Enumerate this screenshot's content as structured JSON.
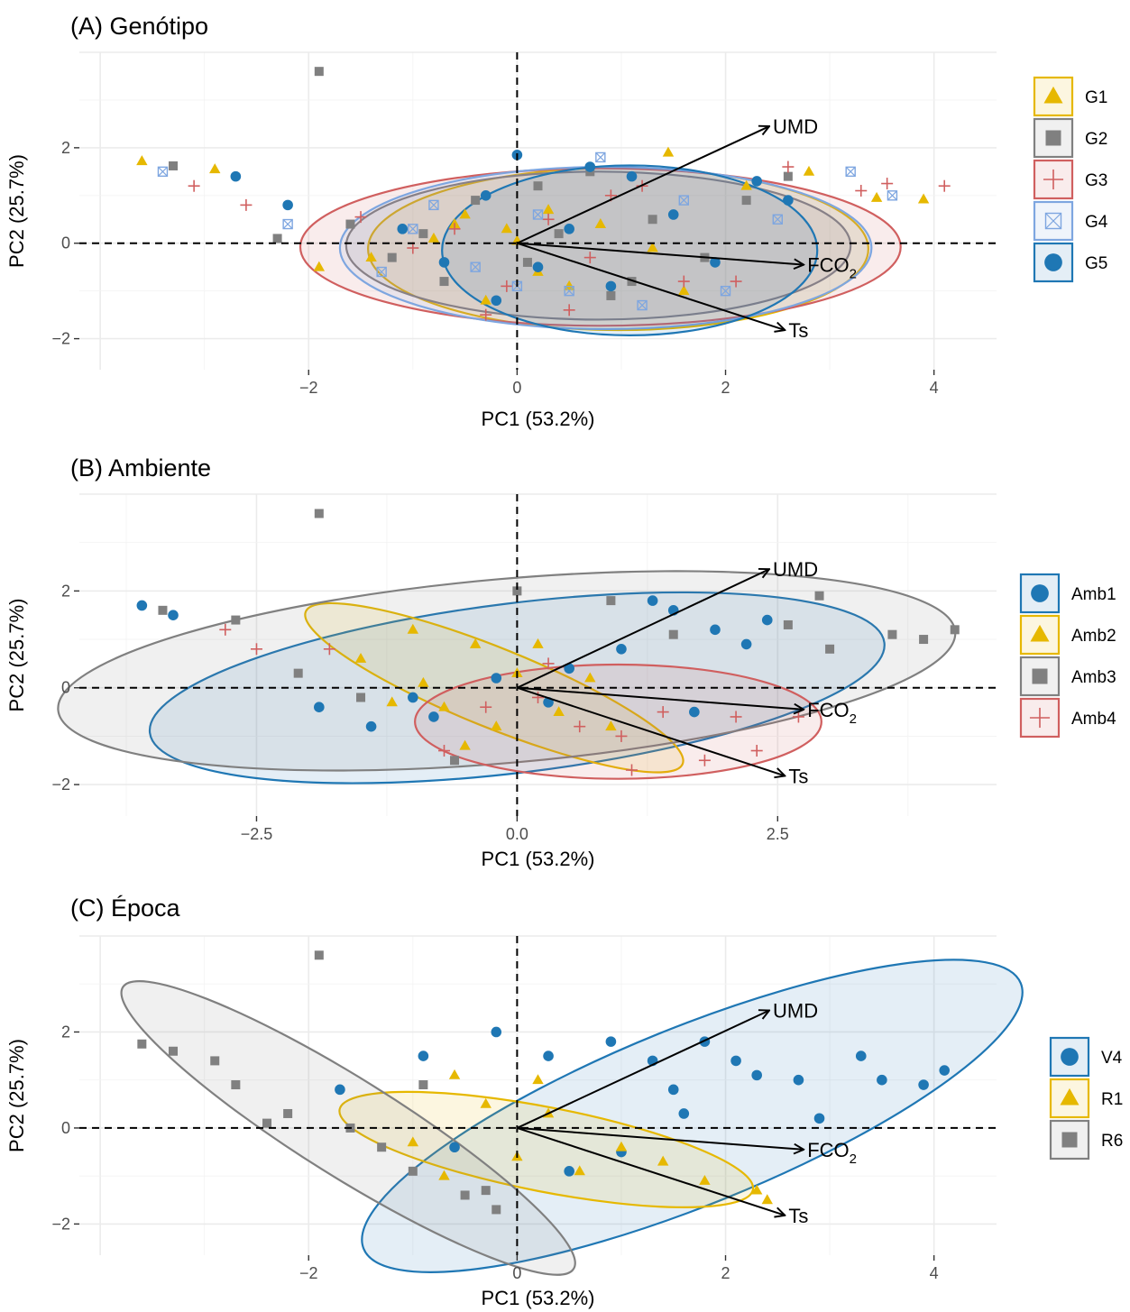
{
  "chart_data": [
    {
      "type": "scatter",
      "title": "(A) Genótipo",
      "xlabel": "PC1 (53.2%)",
      "ylabel": "PC2 (25.7%)",
      "xlim": [
        -4.2,
        4.6
      ],
      "ylim": [
        -2.65,
        4.0
      ],
      "xticks": [
        -2,
        0,
        2,
        4
      ],
      "xtick_labels": [
        "−2",
        "0",
        "2",
        "4"
      ],
      "yticks": [
        -2,
        0,
        2
      ],
      "ytick_labels": [
        "−2",
        "0",
        "2"
      ],
      "grid": true,
      "legend": "right",
      "vectors": [
        {
          "label": "UMD",
          "x": 2.42,
          "y": 2.45
        },
        {
          "label": "FCO",
          "sub": "2",
          "x": 2.75,
          "y": -0.45
        },
        {
          "label": "Ts",
          "x": 2.57,
          "y": -1.82
        }
      ],
      "series": [
        {
          "name": "G1",
          "marker": "triangle",
          "color": "#e6b800",
          "ellipse": {
            "cx": 0.97,
            "cy": -0.12,
            "rx": 2.4,
            "ry": 1.7,
            "angle": 0
          },
          "points": [
            [
              -3.6,
              1.72
            ],
            [
              -2.9,
              1.55
            ],
            [
              -1.4,
              -0.3
            ],
            [
              -0.8,
              0.1
            ],
            [
              -0.5,
              0.6
            ],
            [
              -0.3,
              -1.2
            ],
            [
              -0.1,
              0.3
            ],
            [
              0.2,
              -0.6
            ],
            [
              0.5,
              -0.9
            ],
            [
              0.8,
              0.4
            ],
            [
              1.3,
              -0.1
            ],
            [
              1.45,
              1.9
            ],
            [
              1.6,
              -1.0
            ],
            [
              2.2,
              1.2
            ],
            [
              2.8,
              1.5
            ],
            [
              3.45,
              0.95
            ],
            [
              3.9,
              0.92
            ],
            [
              -1.9,
              -0.5
            ],
            [
              0.0,
              0.05
            ],
            [
              -0.6,
              0.4
            ],
            [
              0.3,
              0.7
            ]
          ]
        },
        {
          "name": "G2",
          "marker": "square",
          "color": "#808080",
          "ellipse": {
            "cx": 0.78,
            "cy": -0.05,
            "rx": 2.42,
            "ry": 1.55,
            "angle": 0
          },
          "points": [
            [
              -1.9,
              3.6
            ],
            [
              -3.3,
              1.62
            ],
            [
              -1.6,
              0.4
            ],
            [
              -1.2,
              -0.3
            ],
            [
              -0.7,
              -0.8
            ],
            [
              -0.4,
              0.9
            ],
            [
              0.1,
              -0.4
            ],
            [
              0.4,
              0.2
            ],
            [
              0.9,
              -1.1
            ],
            [
              1.3,
              0.5
            ],
            [
              1.8,
              -0.3
            ],
            [
              2.2,
              0.9
            ],
            [
              2.6,
              1.4
            ],
            [
              -2.3,
              0.1
            ],
            [
              -0.9,
              0.2
            ],
            [
              0.7,
              1.5
            ],
            [
              1.1,
              -0.8
            ],
            [
              0.2,
              1.2
            ]
          ]
        },
        {
          "name": "G3",
          "marker": "plus",
          "color": "#d05f5f",
          "ellipse": {
            "cx": 0.8,
            "cy": -0.08,
            "rx": 2.88,
            "ry": 1.65,
            "angle": 0
          },
          "points": [
            [
              -3.1,
              1.2
            ],
            [
              -2.6,
              0.8
            ],
            [
              -1.5,
              0.55
            ],
            [
              -1.0,
              -0.1
            ],
            [
              -0.6,
              0.3
            ],
            [
              -0.1,
              -0.9
            ],
            [
              0.3,
              0.5
            ],
            [
              0.7,
              -0.3
            ],
            [
              1.2,
              1.2
            ],
            [
              1.6,
              -0.8
            ],
            [
              2.1,
              -0.8
            ],
            [
              2.6,
              1.6
            ],
            [
              3.3,
              1.1
            ],
            [
              3.55,
              1.25
            ],
            [
              4.1,
              1.2
            ],
            [
              0.9,
              1.0
            ],
            [
              -0.3,
              -1.5
            ],
            [
              0.5,
              -1.4
            ]
          ]
        },
        {
          "name": "G4",
          "marker": "crossbox",
          "color": "#7ea6e0",
          "ellipse": {
            "cx": 0.85,
            "cy": -0.1,
            "rx": 2.55,
            "ry": 1.7,
            "angle": 0
          },
          "points": [
            [
              -3.4,
              1.5
            ],
            [
              -2.2,
              0.4
            ],
            [
              -1.3,
              -0.6
            ],
            [
              -0.8,
              0.8
            ],
            [
              -0.4,
              -0.5
            ],
            [
              0.0,
              -0.9
            ],
            [
              0.5,
              -1.0
            ],
            [
              0.8,
              1.8
            ],
            [
              1.2,
              -1.3
            ],
            [
              1.6,
              0.9
            ],
            [
              2.0,
              -1.0
            ],
            [
              2.5,
              0.5
            ],
            [
              3.2,
              1.5
            ],
            [
              3.6,
              1.0
            ],
            [
              0.2,
              0.6
            ],
            [
              -1.0,
              0.3
            ]
          ]
        },
        {
          "name": "G5",
          "marker": "circle",
          "color": "#1f77b4",
          "ellipse": {
            "cx": 1.08,
            "cy": -0.15,
            "rx": 1.8,
            "ry": 1.78,
            "angle": 0
          },
          "points": [
            [
              -2.7,
              1.4
            ],
            [
              -2.2,
              0.8
            ],
            [
              -1.1,
              0.3
            ],
            [
              -0.7,
              -0.4
            ],
            [
              -0.3,
              1.0
            ],
            [
              0.0,
              1.85
            ],
            [
              0.2,
              -0.5
            ],
            [
              0.5,
              0.3
            ],
            [
              0.9,
              -0.9
            ],
            [
              1.1,
              1.4
            ],
            [
              1.5,
              0.6
            ],
            [
              1.9,
              -0.4
            ],
            [
              2.3,
              1.3
            ],
            [
              2.6,
              0.9
            ],
            [
              -0.2,
              -1.2
            ],
            [
              0.7,
              1.6
            ]
          ]
        }
      ]
    },
    {
      "type": "scatter",
      "title": "(B) Ambiente",
      "xlabel": "PC1 (53.2%)",
      "ylabel": "PC2 (25.7%)",
      "xlim": [
        -4.2,
        4.6
      ],
      "ylim": [
        -2.65,
        4.0
      ],
      "xticks": [
        -2.5,
        0,
        2.5
      ],
      "xtick_labels": [
        "−2.5",
        "0.0",
        "2.5"
      ],
      "yticks": [
        -2,
        0,
        2
      ],
      "ytick_labels": [
        "−2",
        "0",
        "2"
      ],
      "grid": true,
      "legend": "right",
      "vectors": [
        {
          "label": "UMD",
          "x": 2.42,
          "y": 2.45
        },
        {
          "label": "FCO",
          "sub": "2",
          "x": 2.75,
          "y": -0.45
        },
        {
          "label": "Ts",
          "x": 2.57,
          "y": -1.82
        }
      ],
      "series": [
        {
          "name": "Amb1",
          "marker": "circle",
          "color": "#1f77b4",
          "ellipse": {
            "cx": 0.0,
            "cy": 0.0,
            "rx": 3.55,
            "ry": 1.75,
            "angle": 7
          },
          "points": [
            [
              -3.6,
              1.7
            ],
            [
              -3.3,
              1.5
            ],
            [
              -1.9,
              -0.4
            ],
            [
              -1.4,
              -0.8
            ],
            [
              -0.8,
              -0.6
            ],
            [
              -0.2,
              0.2
            ],
            [
              0.3,
              -0.3
            ],
            [
              1.0,
              0.8
            ],
            [
              1.5,
              1.6
            ],
            [
              1.9,
              1.2
            ],
            [
              2.2,
              0.9
            ],
            [
              1.3,
              1.8
            ],
            [
              1.7,
              -0.5
            ],
            [
              0.5,
              0.4
            ],
            [
              2.4,
              1.4
            ],
            [
              -1.0,
              -0.2
            ]
          ]
        },
        {
          "name": "Amb2",
          "marker": "triangle",
          "color": "#e6b800",
          "ellipse": {
            "cx": -0.22,
            "cy": 0.0,
            "rx": 1.95,
            "ry": 0.82,
            "angle": -22
          },
          "points": [
            [
              -1.5,
              0.6
            ],
            [
              -1.0,
              1.2
            ],
            [
              -0.7,
              -0.4
            ],
            [
              -0.4,
              0.9
            ],
            [
              -0.2,
              -0.8
            ],
            [
              0.0,
              0.3
            ],
            [
              0.4,
              -0.5
            ],
            [
              0.7,
              0.2
            ],
            [
              -0.9,
              0.1
            ],
            [
              -0.5,
              -1.2
            ],
            [
              0.2,
              0.9
            ],
            [
              0.9,
              -0.8
            ],
            [
              -1.2,
              -0.3
            ]
          ]
        },
        {
          "name": "Amb3",
          "marker": "square",
          "color": "#808080",
          "ellipse": {
            "cx": -0.1,
            "cy": 0.35,
            "rx": 4.32,
            "ry": 1.9,
            "angle": 5
          },
          "points": [
            [
              -1.9,
              3.6
            ],
            [
              -3.4,
              1.6
            ],
            [
              -2.7,
              1.4
            ],
            [
              -2.1,
              0.3
            ],
            [
              -1.5,
              -0.2
            ],
            [
              0.0,
              2.0
            ],
            [
              0.9,
              1.8
            ],
            [
              1.5,
              1.1
            ],
            [
              2.6,
              1.3
            ],
            [
              3.0,
              0.8
            ],
            [
              3.6,
              1.1
            ],
            [
              3.9,
              1.0
            ],
            [
              4.2,
              1.2
            ],
            [
              2.9,
              1.9
            ],
            [
              -0.6,
              -1.5
            ]
          ]
        },
        {
          "name": "Amb4",
          "marker": "plus",
          "color": "#d05f5f",
          "ellipse": {
            "cx": 0.97,
            "cy": -0.7,
            "rx": 1.95,
            "ry": 1.18,
            "angle": 0
          },
          "points": [
            [
              -2.8,
              1.2
            ],
            [
              -2.5,
              0.8
            ],
            [
              -1.8,
              0.8
            ],
            [
              -0.7,
              -1.3
            ],
            [
              -0.3,
              -0.4
            ],
            [
              0.2,
              -0.2
            ],
            [
              0.6,
              -0.8
            ],
            [
              1.0,
              -1.0
            ],
            [
              1.4,
              -0.5
            ],
            [
              2.1,
              -0.6
            ],
            [
              2.3,
              -1.3
            ],
            [
              2.7,
              -0.6
            ],
            [
              1.8,
              -1.5
            ],
            [
              1.1,
              -1.7
            ],
            [
              0.3,
              0.5
            ]
          ]
        }
      ]
    },
    {
      "type": "scatter",
      "title": "(C) Época",
      "xlabel": "PC1 (53.2%)",
      "ylabel": "PC2 (25.7%)",
      "xlim": [
        -4.2,
        4.6
      ],
      "ylim": [
        -2.65,
        4.0
      ],
      "xticks": [
        -2,
        0,
        2,
        4
      ],
      "xtick_labels": [
        "−2",
        "0",
        "2",
        "4"
      ],
      "yticks": [
        -2,
        0,
        2
      ],
      "ytick_labels": [
        "−2",
        "0",
        "2"
      ],
      "grid": true,
      "legend": "right",
      "vectors": [
        {
          "label": "UMD",
          "x": 2.42,
          "y": 2.45
        },
        {
          "label": "FCO",
          "sub": "2",
          "x": 2.75,
          "y": -0.45
        },
        {
          "label": "Ts",
          "x": 2.57,
          "y": -1.82
        }
      ],
      "series": [
        {
          "name": "V4",
          "marker": "circle",
          "color": "#1f77b4",
          "ellipse": {
            "cx": 1.68,
            "cy": 0.25,
            "rx": 3.4,
            "ry": 1.85,
            "angle": 22
          },
          "points": [
            [
              -1.7,
              0.8
            ],
            [
              -0.9,
              1.5
            ],
            [
              -0.2,
              2.0
            ],
            [
              0.3,
              1.5
            ],
            [
              0.9,
              1.8
            ],
            [
              1.3,
              1.4
            ],
            [
              1.5,
              0.8
            ],
            [
              1.8,
              1.8
            ],
            [
              2.1,
              1.4
            ],
            [
              2.3,
              1.1
            ],
            [
              2.7,
              1.0
            ],
            [
              3.3,
              1.5
            ],
            [
              3.5,
              1.0
            ],
            [
              3.9,
              0.9
            ],
            [
              4.1,
              1.2
            ],
            [
              1.0,
              -0.5
            ],
            [
              0.5,
              -0.9
            ],
            [
              -0.6,
              -0.4
            ],
            [
              2.9,
              0.2
            ],
            [
              1.6,
              0.3
            ]
          ]
        },
        {
          "name": "R1",
          "marker": "triangle",
          "color": "#e6b800",
          "ellipse": {
            "cx": 0.28,
            "cy": -0.45,
            "rx": 2.02,
            "ry": 0.88,
            "angle": -11
          },
          "points": [
            [
              -1.0,
              -0.3
            ],
            [
              -0.6,
              1.1
            ],
            [
              -0.3,
              0.5
            ],
            [
              0.0,
              -0.6
            ],
            [
              0.3,
              0.3
            ],
            [
              0.6,
              -0.9
            ],
            [
              1.0,
              -0.4
            ],
            [
              1.4,
              -0.7
            ],
            [
              1.8,
              -1.1
            ],
            [
              2.3,
              -1.3
            ],
            [
              2.4,
              -1.5
            ],
            [
              -0.7,
              -1.0
            ],
            [
              0.2,
              1.0
            ]
          ]
        },
        {
          "name": "R6",
          "marker": "square",
          "color": "#808080",
          "ellipse": {
            "cx": -1.62,
            "cy": 0.0,
            "rx": 2.55,
            "ry": 1.02,
            "angle": -32
          },
          "points": [
            [
              -3.6,
              1.75
            ],
            [
              -3.3,
              1.6
            ],
            [
              -2.9,
              1.4
            ],
            [
              -2.7,
              0.9
            ],
            [
              -2.2,
              0.3
            ],
            [
              -1.9,
              3.6
            ],
            [
              -1.6,
              0.0
            ],
            [
              -1.3,
              -0.4
            ],
            [
              -1.0,
              -0.9
            ],
            [
              -0.5,
              -1.4
            ],
            [
              -0.2,
              -1.7
            ],
            [
              -0.9,
              0.9
            ],
            [
              -2.4,
              0.1
            ],
            [
              -0.3,
              -1.3
            ]
          ]
        }
      ]
    }
  ]
}
